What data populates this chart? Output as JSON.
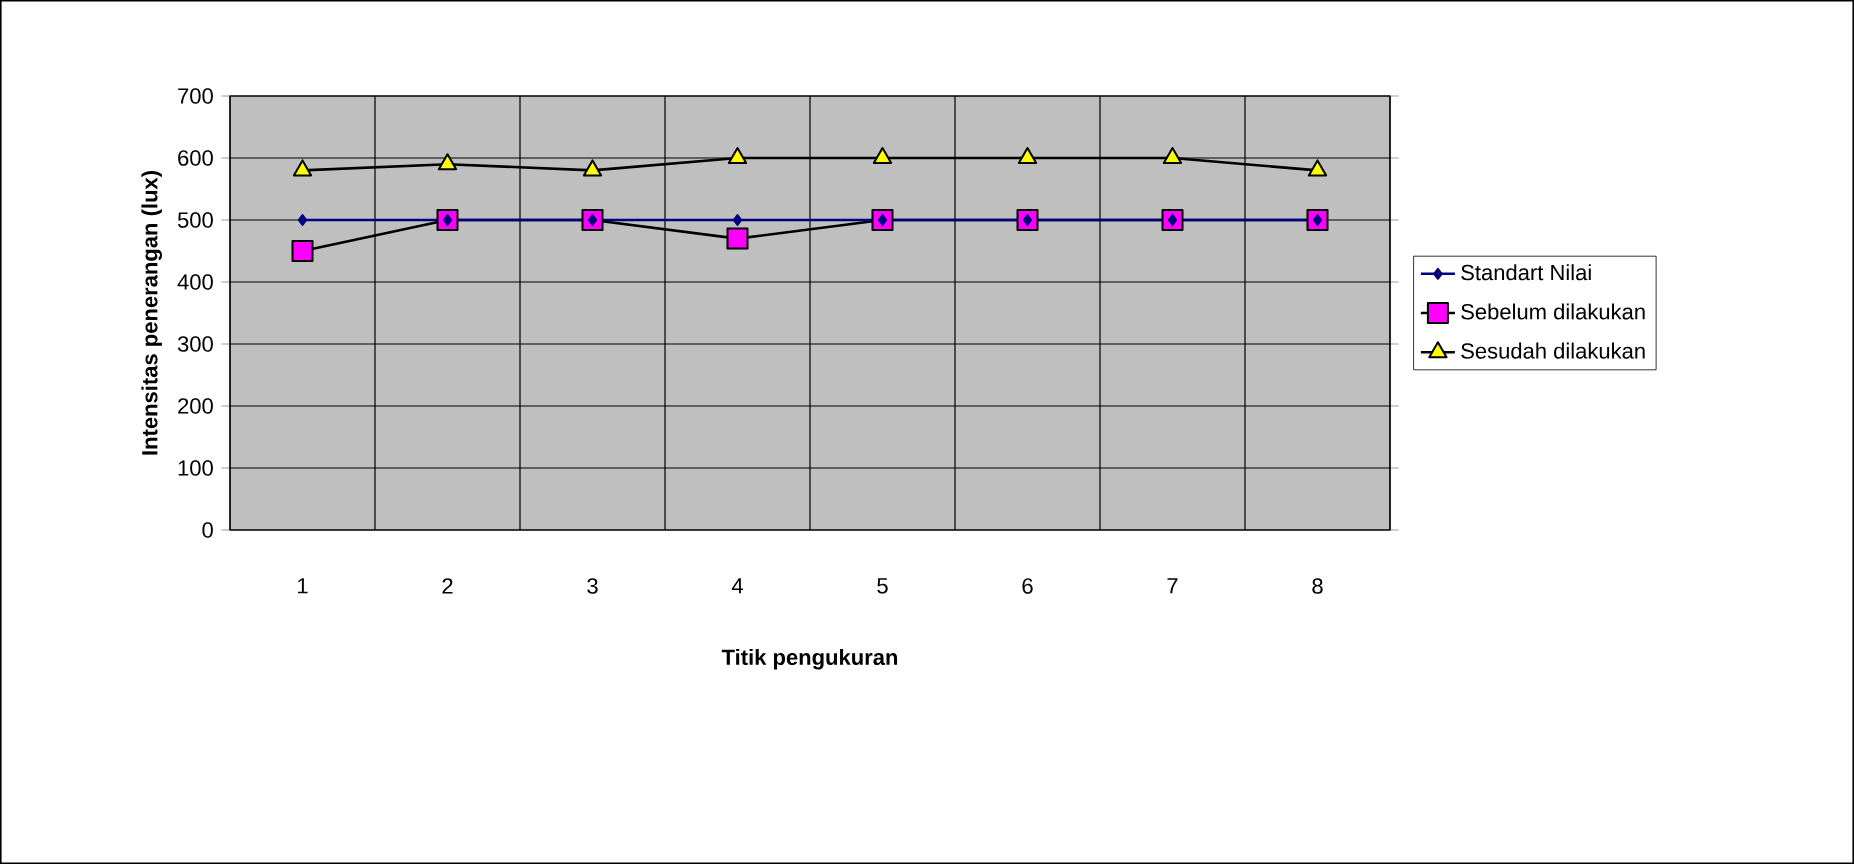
{
  "chart_data": {
    "type": "line",
    "xlabel": "Titik pengukuran",
    "ylabel": "Intensitas penerangan (lux)",
    "categories": [
      "1",
      "2",
      "3",
      "4",
      "5",
      "6",
      "7",
      "8"
    ],
    "series": [
      {
        "name": "Standart Nilai",
        "color": "#000080",
        "marker": "diamond",
        "values": [
          500,
          500,
          500,
          500,
          500,
          500,
          500,
          500
        ]
      },
      {
        "name": "Sebelum dilakukan",
        "color": "#ff00ff",
        "marker": "square",
        "values": [
          450,
          500,
          500,
          470,
          500,
          500,
          500,
          500
        ]
      },
      {
        "name": "Sesudah dilakukan",
        "color": "#ffff00",
        "marker": "triangle",
        "values": [
          580,
          590,
          580,
          600,
          600,
          600,
          600,
          580
        ]
      }
    ],
    "ylim": [
      0,
      700
    ],
    "yticks": [
      0,
      100,
      200,
      300,
      400,
      500,
      600,
      700
    ],
    "grid": true,
    "legend": "right"
  }
}
